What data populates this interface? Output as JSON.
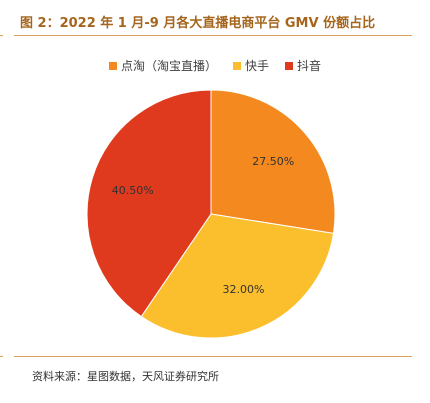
{
  "figure": {
    "title": "图 2：2022 年 1 月-9 月各大直播电商平台 GMV 份额占比",
    "source": "资料来源：星图数据，天风证券研究所"
  },
  "chart_data": {
    "type": "pie",
    "categories": [
      "点淘（淘宝直播）",
      "快手",
      "抖音"
    ],
    "values": [
      27.5,
      32.0,
      40.5
    ],
    "labels": [
      "27.50%",
      "32.00%",
      "40.50%"
    ],
    "colors": [
      "#f4891f",
      "#fbbe2c",
      "#e03a1e"
    ],
    "legend_position": "top",
    "start_direction": "12 o'clock, clockwise"
  }
}
